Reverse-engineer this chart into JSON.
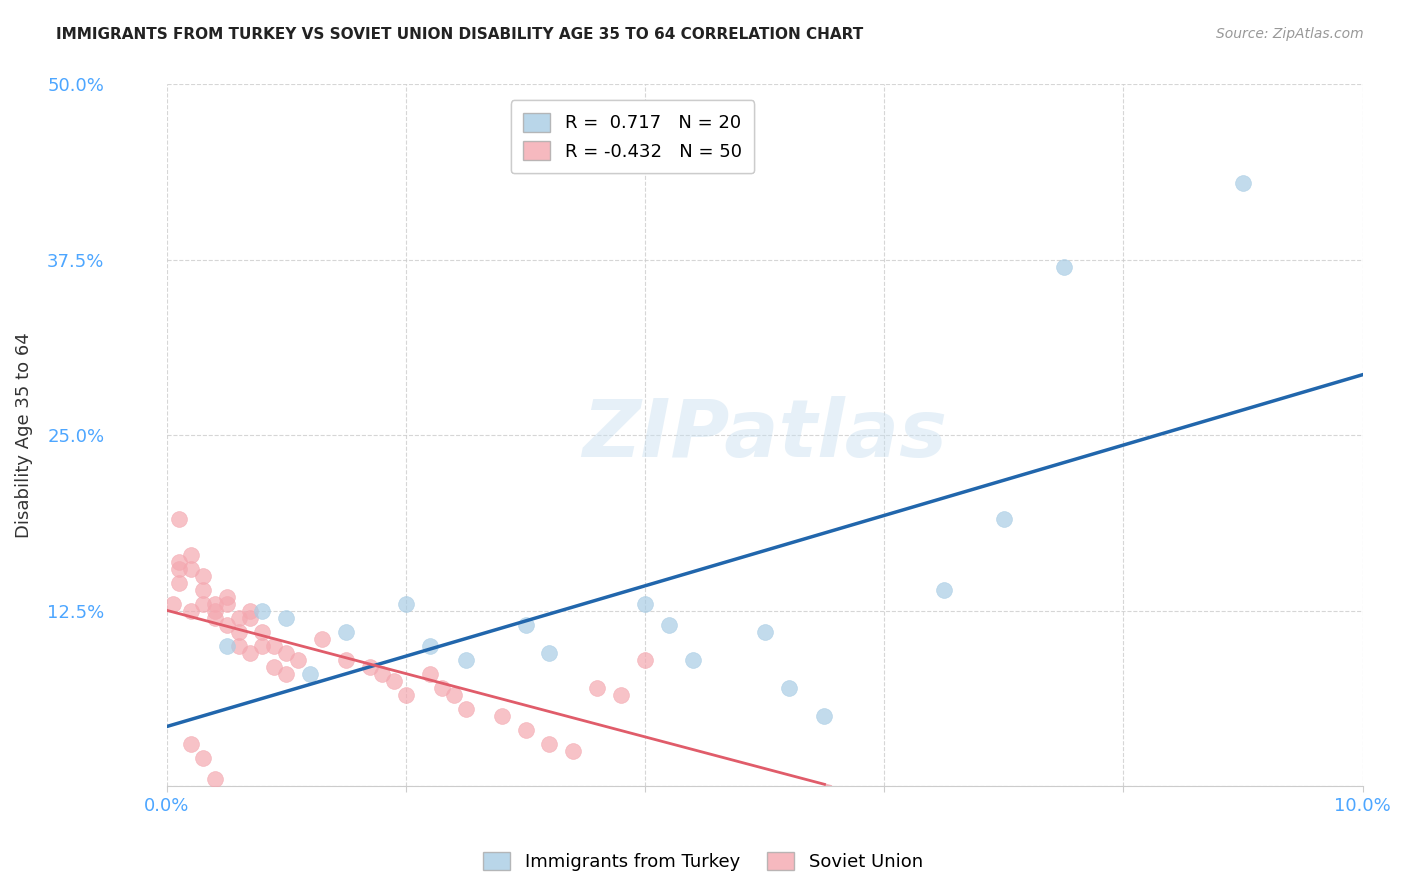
{
  "title": "IMMIGRANTS FROM TURKEY VS SOVIET UNION DISABILITY AGE 35 TO 64 CORRELATION CHART",
  "source": "Source: ZipAtlas.com",
  "tick_color": "#4da6ff",
  "ylabel": "Disability Age 35 to 64",
  "xlim": [
    0.0,
    0.1
  ],
  "ylim": [
    0.0,
    0.5
  ],
  "x_ticks": [
    0.0,
    0.02,
    0.04,
    0.06,
    0.08,
    0.1
  ],
  "y_ticks": [
    0.0,
    0.125,
    0.25,
    0.375,
    0.5
  ],
  "legend_blue_R": "0.717",
  "legend_blue_N": "20",
  "legend_pink_R": "-0.432",
  "legend_pink_N": "50",
  "blue_color": "#a8cce4",
  "pink_color": "#f4a8b0",
  "blue_line_color": "#2166ac",
  "pink_line_color": "#e05c6a",
  "watermark": "ZIPatlas",
  "turkey_points_x": [
    0.005,
    0.008,
    0.01,
    0.012,
    0.015,
    0.02,
    0.022,
    0.025,
    0.03,
    0.032,
    0.04,
    0.042,
    0.044,
    0.05,
    0.052,
    0.055,
    0.065,
    0.07,
    0.075,
    0.09
  ],
  "turkey_points_y": [
    0.1,
    0.125,
    0.12,
    0.08,
    0.11,
    0.13,
    0.1,
    0.09,
    0.115,
    0.095,
    0.13,
    0.115,
    0.09,
    0.11,
    0.07,
    0.05,
    0.14,
    0.19,
    0.37,
    0.43
  ],
  "soviet_points_x": [
    0.001,
    0.001,
    0.002,
    0.002,
    0.003,
    0.003,
    0.004,
    0.004,
    0.005,
    0.005,
    0.006,
    0.006,
    0.007,
    0.007,
    0.008,
    0.009,
    0.01,
    0.011,
    0.013,
    0.015,
    0.017,
    0.018,
    0.019,
    0.02,
    0.022,
    0.023,
    0.024,
    0.025,
    0.028,
    0.03,
    0.032,
    0.034,
    0.036,
    0.038,
    0.04,
    0.001,
    0.002,
    0.003,
    0.004,
    0.005,
    0.006,
    0.007,
    0.008,
    0.009,
    0.01,
    0.002,
    0.003,
    0.004,
    0.0005,
    0.001
  ],
  "soviet_points_y": [
    0.155,
    0.19,
    0.155,
    0.165,
    0.14,
    0.15,
    0.125,
    0.13,
    0.13,
    0.135,
    0.11,
    0.12,
    0.12,
    0.125,
    0.11,
    0.1,
    0.095,
    0.09,
    0.105,
    0.09,
    0.085,
    0.08,
    0.075,
    0.065,
    0.08,
    0.07,
    0.065,
    0.055,
    0.05,
    0.04,
    0.03,
    0.025,
    0.07,
    0.065,
    0.09,
    0.145,
    0.125,
    0.13,
    0.12,
    0.115,
    0.1,
    0.095,
    0.1,
    0.085,
    0.08,
    0.03,
    0.02,
    0.005,
    0.13,
    0.16
  ]
}
